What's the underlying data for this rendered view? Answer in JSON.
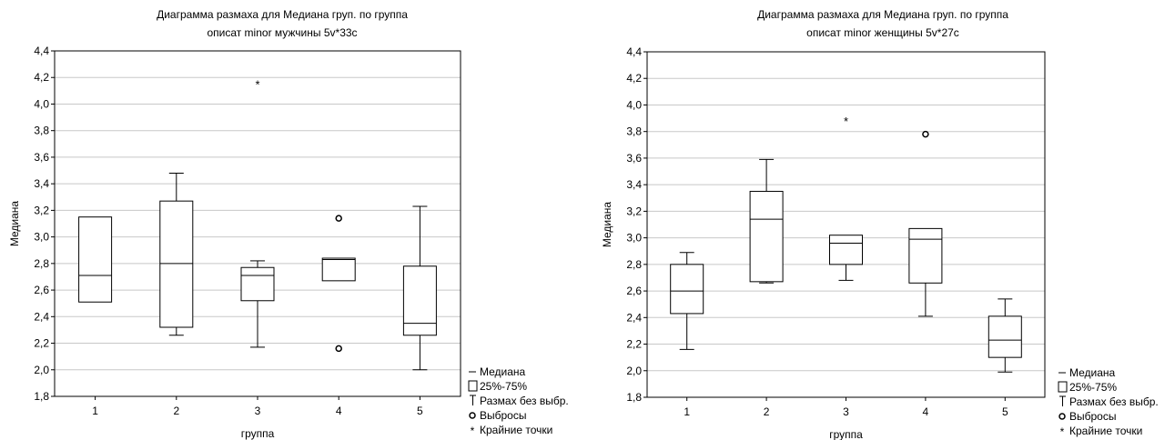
{
  "legend": [
    {
      "symbol": "median",
      "label": "Медиана"
    },
    {
      "symbol": "box",
      "label": "25%-75%"
    },
    {
      "symbol": "whisker",
      "label": "Размах без выбр."
    },
    {
      "symbol": "outlier",
      "label": "Выбросы"
    },
    {
      "symbol": "extreme",
      "label": "Крайние точки"
    }
  ],
  "chart_data": [
    {
      "type": "box",
      "title": "Диаграмма размаха для Медиана груп. по группа",
      "subtitle": "описат minor мужчины 5v*33c",
      "xlabel": "группа",
      "ylabel": "Медиана",
      "ylim": [
        1.8,
        4.4
      ],
      "ytick_labels": [
        "1,8",
        "2,0",
        "2,2",
        "2,4",
        "2,6",
        "2,8",
        "3,0",
        "3,2",
        "3,4",
        "3,6",
        "3,8",
        "4,0",
        "4,2",
        "4,4"
      ],
      "categories": [
        "1",
        "2",
        "3",
        "4",
        "5"
      ],
      "grid": true,
      "legend_position": "bottom-right outside",
      "boxes": [
        {
          "category": "1",
          "q1": 2.51,
          "median": 2.71,
          "q3": 3.15,
          "whisker_low": 2.51,
          "whisker_high": 3.15,
          "outliers": [],
          "extremes": []
        },
        {
          "category": "2",
          "q1": 2.32,
          "median": 2.8,
          "q3": 3.27,
          "whisker_low": 2.26,
          "whisker_high": 3.48,
          "outliers": [],
          "extremes": []
        },
        {
          "category": "3",
          "q1": 2.52,
          "median": 2.71,
          "q3": 2.77,
          "whisker_low": 2.17,
          "whisker_high": 2.82,
          "outliers": [],
          "extremes": [
            4.15
          ]
        },
        {
          "category": "4",
          "q1": 2.67,
          "median": 2.83,
          "q3": 2.84,
          "whisker_low": 2.67,
          "whisker_high": 2.84,
          "outliers": [
            3.14,
            2.16
          ],
          "extremes": []
        },
        {
          "category": "5",
          "q1": 2.26,
          "median": 2.35,
          "q3": 2.78,
          "whisker_low": 2.0,
          "whisker_high": 3.23,
          "outliers": [],
          "extremes": []
        }
      ]
    },
    {
      "type": "box",
      "title": "Диаграмма размаха для Медиана груп. по группа",
      "subtitle": "описат minor женщины 5v*27c",
      "xlabel": "группа",
      "ylabel": "Медиана",
      "ylim": [
        1.8,
        4.4
      ],
      "ytick_labels": [
        "1,8",
        "2,0",
        "2,2",
        "2,4",
        "2,6",
        "2,8",
        "3,0",
        "3,2",
        "3,4",
        "3,6",
        "3,8",
        "4,0",
        "4,2",
        "4,4"
      ],
      "categories": [
        "1",
        "2",
        "3",
        "4",
        "5"
      ],
      "grid": true,
      "legend_position": "bottom-right outside",
      "boxes": [
        {
          "category": "1",
          "q1": 2.43,
          "median": 2.6,
          "q3": 2.8,
          "whisker_low": 2.16,
          "whisker_high": 2.89,
          "outliers": [],
          "extremes": []
        },
        {
          "category": "2",
          "q1": 2.67,
          "median": 3.14,
          "q3": 3.35,
          "whisker_low": 2.66,
          "whisker_high": 3.59,
          "outliers": [],
          "extremes": []
        },
        {
          "category": "3",
          "q1": 2.8,
          "median": 2.96,
          "q3": 3.02,
          "whisker_low": 2.68,
          "whisker_high": 3.02,
          "outliers": [],
          "extremes": [
            3.88
          ]
        },
        {
          "category": "4",
          "q1": 2.66,
          "median": 2.99,
          "q3": 3.07,
          "whisker_low": 2.41,
          "whisker_high": 3.07,
          "outliers": [
            3.78
          ],
          "extremes": []
        },
        {
          "category": "5",
          "q1": 2.1,
          "median": 2.23,
          "q3": 2.41,
          "whisker_low": 1.99,
          "whisker_high": 2.54,
          "outliers": [],
          "extremes": []
        }
      ]
    }
  ]
}
